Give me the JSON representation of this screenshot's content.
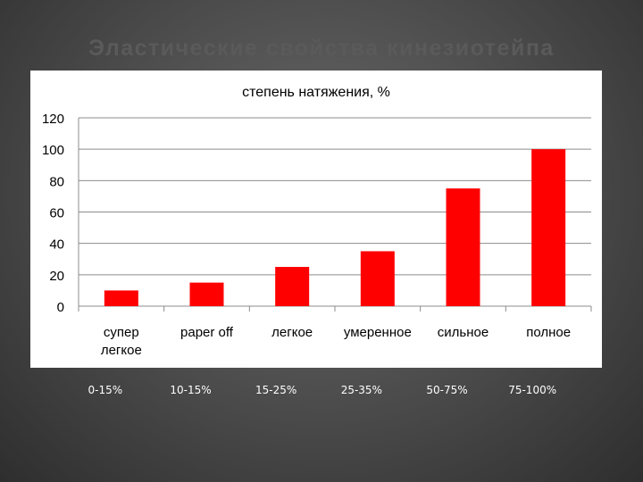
{
  "slide": {
    "title": "Эластические свойства кинезиотейпа"
  },
  "chart_data": {
    "type": "bar",
    "title": "степень натяжения, %",
    "categories": [
      [
        "супер",
        "легкое"
      ],
      [
        "paper off"
      ],
      [
        "легкое"
      ],
      [
        "умеренное"
      ],
      [
        "сильное"
      ],
      [
        "полное"
      ]
    ],
    "series": [
      {
        "values": [
          10,
          15,
          25,
          35,
          75,
          100
        ]
      }
    ],
    "ylim": [
      0,
      120
    ],
    "yticks": [
      0,
      20,
      40,
      60,
      80,
      100,
      120
    ],
    "grid": true,
    "bar_color": "#ff0000"
  },
  "ranges": [
    "0-15%",
    "10-15%",
    "15-25%",
    "25-35%",
    "50-75%",
    "75-100%"
  ]
}
